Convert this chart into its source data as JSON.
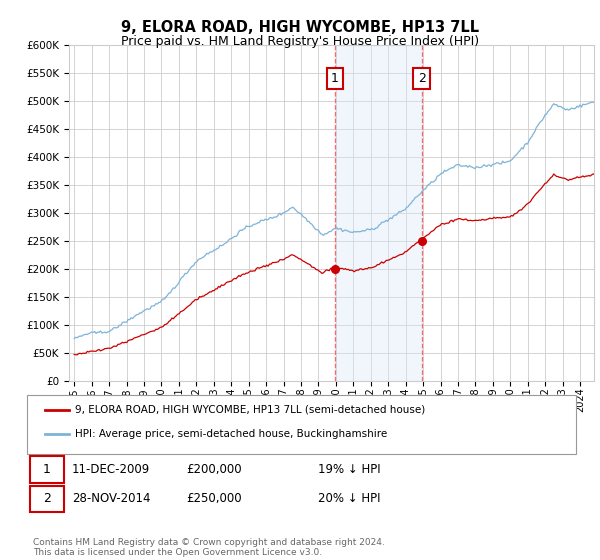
{
  "title": "9, ELORA ROAD, HIGH WYCOMBE, HP13 7LL",
  "subtitle": "Price paid vs. HM Land Registry's House Price Index (HPI)",
  "legend_line1": "9, ELORA ROAD, HIGH WYCOMBE, HP13 7LL (semi-detached house)",
  "legend_line2": "HPI: Average price, semi-detached house, Buckinghamshire",
  "annotation1_label": "1",
  "annotation1_date": "11-DEC-2009",
  "annotation1_price": "£200,000",
  "annotation1_hpi": "19% ↓ HPI",
  "annotation2_label": "2",
  "annotation2_date": "28-NOV-2014",
  "annotation2_price": "£250,000",
  "annotation2_hpi": "20% ↓ HPI",
  "footnote": "Contains HM Land Registry data © Crown copyright and database right 2024.\nThis data is licensed under the Open Government Licence v3.0.",
  "ylim": [
    0,
    600000
  ],
  "yticks": [
    0,
    50000,
    100000,
    150000,
    200000,
    250000,
    300000,
    350000,
    400000,
    450000,
    500000,
    550000,
    600000
  ],
  "hpi_color": "#7EB3D8",
  "price_color": "#CC0000",
  "shading_color": "#daeaf7",
  "vline_color": "#FF6666",
  "background_color": "#ffffff",
  "grid_color": "#cccccc",
  "sale1_year": 2009.94,
  "sale1_price": 200000,
  "sale2_year": 2014.92,
  "sale2_price": 250000,
  "xlim_left": 1994.7,
  "xlim_right": 2024.8
}
